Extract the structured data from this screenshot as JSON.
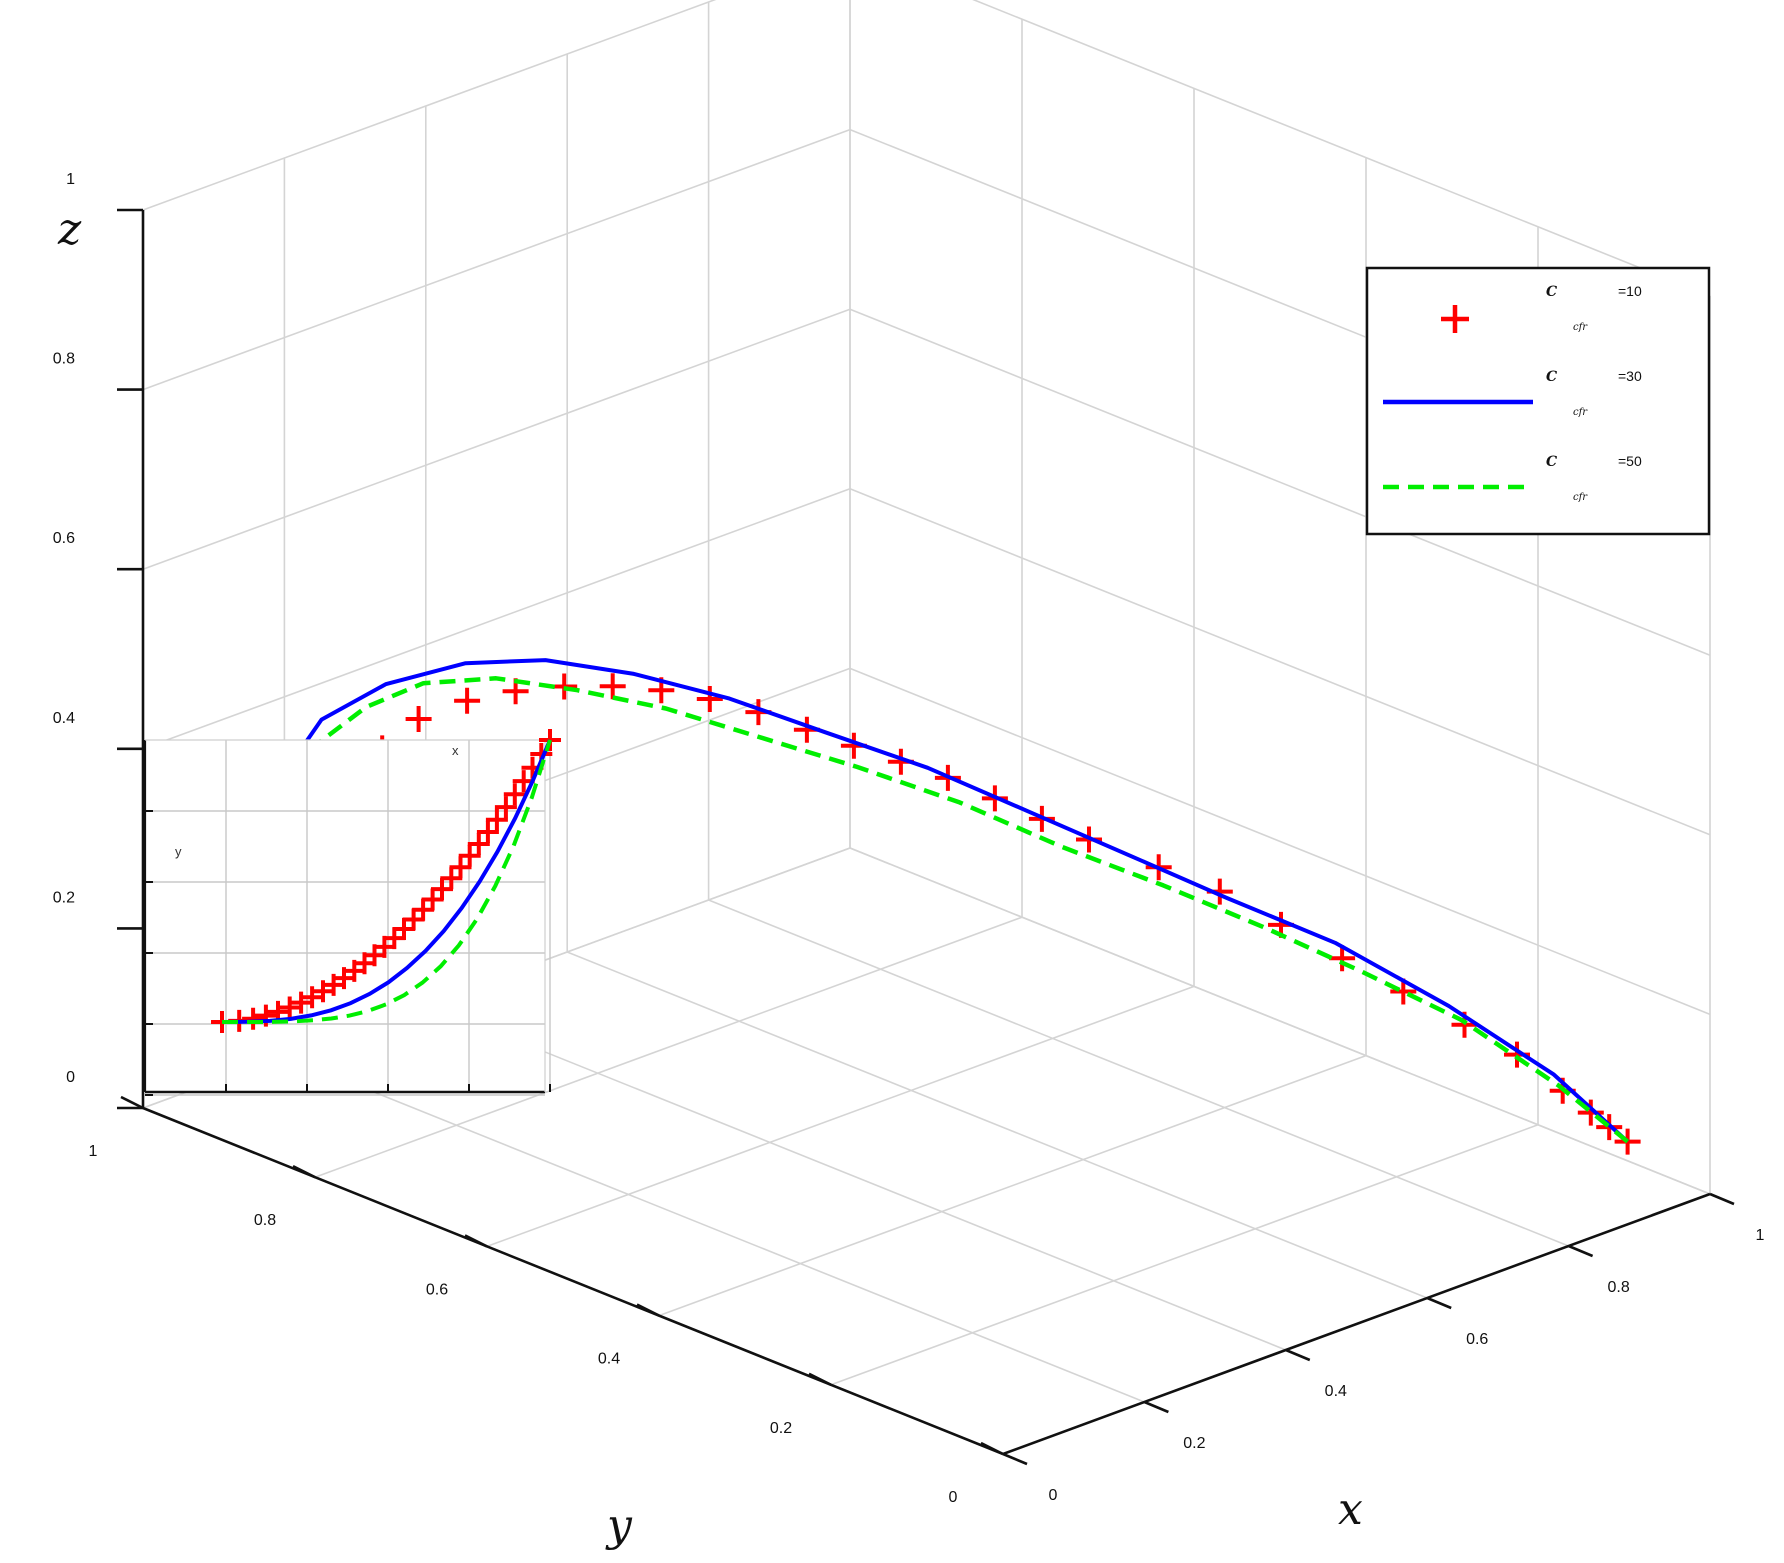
{
  "chart_data": {
    "type": "line",
    "title": "",
    "axes": {
      "x": {
        "label": "x",
        "range": [
          0,
          1
        ],
        "ticks": [
          "0",
          "0.2",
          "0.4",
          "0.6",
          "0.8",
          "1"
        ]
      },
      "y": {
        "label": "y",
        "range": [
          0,
          1
        ],
        "ticks": [
          "0",
          "0.2",
          "0.4",
          "0.6",
          "0.8",
          "1"
        ]
      },
      "z": {
        "label": "z",
        "range": [
          0,
          1
        ],
        "ticks": [
          "0",
          "0.2",
          "0.4",
          "0.6",
          "0.8",
          "1"
        ]
      }
    },
    "grid": true,
    "legend": {
      "position": "top-right",
      "entries": [
        {
          "symbol": "C",
          "subscript": "cfr",
          "value": "=10",
          "color": "#ff0000",
          "style": "plus-markers"
        },
        {
          "symbol": "C",
          "subscript": "cfr",
          "value": "=30",
          "color": "#0000ff",
          "style": "solid"
        },
        {
          "symbol": "C",
          "subscript": "cfr",
          "value": "=50",
          "color": "#00ee00",
          "style": "dashed"
        }
      ]
    },
    "inset": {
      "x_label": "x",
      "y_label": "y",
      "position": "left"
    },
    "series": [
      {
        "name": "C cfr =10",
        "color": "#ff0000",
        "marker": "plus",
        "points": [
          [
            0.92,
            0.03,
            0.07
          ],
          [
            0.9,
            0.035,
            0.09
          ],
          [
            0.88,
            0.04,
            0.11
          ],
          [
            0.85,
            0.048,
            0.14
          ],
          [
            0.8,
            0.06,
            0.19
          ],
          [
            0.75,
            0.08,
            0.23
          ],
          [
            0.7,
            0.11,
            0.27
          ],
          [
            0.65,
            0.14,
            0.31
          ],
          [
            0.6,
            0.17,
            0.35
          ],
          [
            0.55,
            0.2,
            0.39
          ],
          [
            0.5,
            0.23,
            0.42
          ],
          [
            0.45,
            0.27,
            0.45
          ],
          [
            0.42,
            0.3,
            0.47
          ],
          [
            0.39,
            0.33,
            0.49
          ],
          [
            0.36,
            0.36,
            0.51
          ],
          [
            0.33,
            0.39,
            0.525
          ],
          [
            0.3,
            0.42,
            0.54
          ],
          [
            0.27,
            0.45,
            0.555
          ],
          [
            0.25,
            0.49,
            0.565
          ],
          [
            0.23,
            0.53,
            0.57
          ],
          [
            0.21,
            0.57,
            0.57
          ],
          [
            0.19,
            0.61,
            0.565
          ],
          [
            0.17,
            0.65,
            0.555
          ],
          [
            0.15,
            0.69,
            0.54
          ],
          [
            0.13,
            0.73,
            0.52
          ],
          [
            0.11,
            0.77,
            0.49
          ],
          [
            0.095,
            0.8,
            0.45
          ],
          [
            0.08,
            0.83,
            0.41
          ],
          [
            0.07,
            0.85,
            0.37
          ],
          [
            0.06,
            0.87,
            0.33
          ],
          [
            0.05,
            0.88,
            0.3
          ],
          [
            0.045,
            0.89,
            0.27
          ],
          [
            0.04,
            0.9,
            0.25
          ]
        ]
      },
      {
        "name": "C cfr =30",
        "color": "#0000ff",
        "style": "solid",
        "points": [
          [
            0.92,
            0.03,
            0.07
          ],
          [
            0.84,
            0.05,
            0.16
          ],
          [
            0.74,
            0.09,
            0.25
          ],
          [
            0.64,
            0.14,
            0.33
          ],
          [
            0.56,
            0.2,
            0.38
          ],
          [
            0.5,
            0.26,
            0.42
          ],
          [
            0.44,
            0.33,
            0.46
          ],
          [
            0.38,
            0.4,
            0.5
          ],
          [
            0.32,
            0.47,
            0.53
          ],
          [
            0.27,
            0.54,
            0.555
          ],
          [
            0.22,
            0.61,
            0.57
          ],
          [
            0.18,
            0.68,
            0.57
          ],
          [
            0.14,
            0.74,
            0.555
          ],
          [
            0.1,
            0.8,
            0.52
          ],
          [
            0.07,
            0.85,
            0.47
          ],
          [
            0.05,
            0.88,
            0.4
          ],
          [
            0.04,
            0.9,
            0.33
          ],
          [
            0.04,
            0.9,
            0.27
          ]
        ]
      },
      {
        "name": "C cfr =50",
        "color": "#00ee00",
        "style": "dashed",
        "points": [
          [
            0.92,
            0.03,
            0.07
          ],
          [
            0.84,
            0.045,
            0.15
          ],
          [
            0.74,
            0.075,
            0.24
          ],
          [
            0.64,
            0.11,
            0.31
          ],
          [
            0.55,
            0.15,
            0.37
          ],
          [
            0.47,
            0.2,
            0.42
          ],
          [
            0.4,
            0.26,
            0.46
          ],
          [
            0.34,
            0.33,
            0.5
          ],
          [
            0.28,
            0.4,
            0.53
          ],
          [
            0.23,
            0.47,
            0.55
          ],
          [
            0.18,
            0.54,
            0.57
          ],
          [
            0.14,
            0.61,
            0.575
          ],
          [
            0.11,
            0.68,
            0.57
          ],
          [
            0.08,
            0.74,
            0.55
          ],
          [
            0.06,
            0.79,
            0.51
          ],
          [
            0.045,
            0.84,
            0.45
          ],
          [
            0.04,
            0.87,
            0.38
          ],
          [
            0.04,
            0.89,
            0.31
          ],
          [
            0.04,
            0.9,
            0.27
          ]
        ]
      }
    ]
  }
}
